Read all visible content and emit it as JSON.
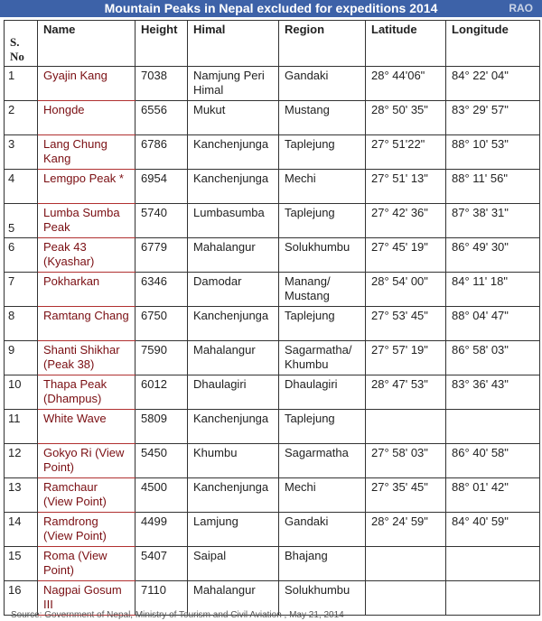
{
  "header": {
    "title": "Mountain Peaks in Nepal excluded for expeditions 2014",
    "brand": "RAO"
  },
  "table": {
    "columns": [
      "S. No",
      "Name",
      "Height",
      "Himal",
      "Region",
      "Latitude",
      "Longitude"
    ],
    "rows": [
      [
        "1",
        "Gyajin Kang",
        "7038",
        "Namjung Peri Himal",
        "Gandaki",
        "28° 44'06\"",
        "84° 22' 04\""
      ],
      [
        "2",
        "Hongde",
        "6556",
        "Mukut",
        "Mustang",
        "28° 50' 35\"",
        "83° 29' 57\""
      ],
      [
        "3",
        "Lang Chung Kang",
        "6786",
        "Kanchenjunga",
        "Taplejung",
        "27° 51'22\"",
        "88° 10' 53\""
      ],
      [
        "4",
        "Lemgpo Peak  *",
        "6954",
        "Kanchenjunga",
        "Mechi",
        "27° 51' 13\"",
        "88° 11' 56\""
      ],
      [
        "5",
        "Lumba Sumba Peak",
        "5740",
        "Lumbasumba",
        "Taplejung",
        "27° 42' 36\"",
        "87° 38' 31\""
      ],
      [
        "6",
        "Peak 43 (Kyashar)",
        "6779",
        "Mahalangur",
        "Solukhumbu",
        "27° 45' 19\"",
        "86° 49' 30\""
      ],
      [
        "7",
        "Pokharkan",
        "6346",
        "Damodar",
        "Manang/ Mustang",
        "28° 54' 00\"",
        "84° 11' 18\""
      ],
      [
        "8",
        "Ramtang Chang",
        "6750",
        "Kanchenjunga",
        "Taplejung",
        "27° 53' 45\"",
        "88° 04' 47\""
      ],
      [
        "9",
        "Shanti Shikhar (Peak 38)",
        "7590",
        "Mahalangur",
        "Sagarmatha/ Khumbu",
        "27° 57' 19\"",
        "86° 58' 03\""
      ],
      [
        "10",
        "Thapa Peak (Dhampus)",
        "6012",
        "Dhaulagiri",
        "Dhaulagiri",
        "28° 47' 53\"",
        "83° 36' 43\""
      ],
      [
        "11",
        "White Wave",
        "5809",
        "Kanchenjunga",
        "Taplejung",
        "",
        ""
      ],
      [
        "12",
        "Gokyo Ri (View Point)",
        "5450",
        "Khumbu",
        "Sagarmatha",
        "27° 58' 03\"",
        "86° 40' 58\""
      ],
      [
        "13",
        "Ramchaur (View Point)",
        "4500",
        "Kanchenjunga",
        "Mechi",
        "27° 35' 45\"",
        "88° 01' 42\""
      ],
      [
        "14",
        "Ramdrong (View Point)",
        "4499",
        "Lamjung",
        "Gandaki",
        "28° 24' 59\"",
        "84° 40' 59\""
      ],
      [
        "15",
        "Roma (View Point)",
        "5407",
        "Saipal",
        "Bhajang",
        "",
        ""
      ],
      [
        "16",
        "Nagpai Gosum III",
        "7110",
        "Mahalangur",
        "Solukhumbu",
        "",
        ""
      ]
    ]
  },
  "footer": {
    "source": "Source: Government of Nepal, Ministry of Tourism and Civil  Aviation , May 21, 2014"
  },
  "colors": {
    "header_bar": "#3d62a8",
    "name_text": "#7a0e12"
  }
}
